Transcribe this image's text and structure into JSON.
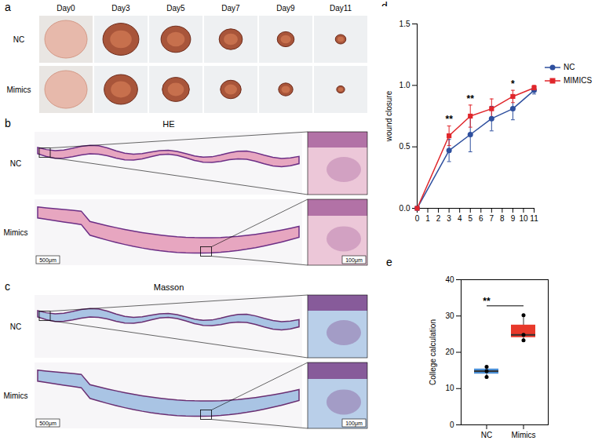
{
  "figure": {
    "a": {
      "letter": "a",
      "columns": [
        "Day0",
        "Day3",
        "Day5",
        "Day7",
        "Day9",
        "Day11"
      ],
      "rows": [
        "NC",
        "Mimics"
      ]
    },
    "b": {
      "letter": "b",
      "title": "HE",
      "rows": [
        "NC",
        "Mimics"
      ],
      "scale_bars": [
        "500μm",
        "100μm"
      ]
    },
    "c": {
      "letter": "c",
      "title": "Masson",
      "rows": [
        "NC",
        "Mimics"
      ],
      "scale_bars": [
        "500μm",
        "100μm"
      ]
    },
    "d": {
      "letter": "d"
    },
    "e": {
      "letter": "e"
    }
  },
  "chart_data": [
    {
      "type": "line",
      "ylabel": "wound closure",
      "x": [
        0,
        3,
        5,
        7,
        9,
        11
      ],
      "xlim": [
        0,
        11
      ],
      "xticks": [
        0,
        1,
        2,
        3,
        4,
        5,
        6,
        7,
        8,
        9,
        10,
        11
      ],
      "ylim": [
        0,
        1.5
      ],
      "yticks": [
        {
          "value": 0,
          "label": "0.0"
        },
        {
          "value": 0.5,
          "label": "0.5"
        },
        {
          "value": 1,
          "label": "1.0"
        },
        {
          "value": 1.5,
          "label": "1.5"
        }
      ],
      "legend": "right",
      "series": [
        {
          "name": "NC",
          "color": "#2e4f9e",
          "marker": "circle",
          "values": [
            0,
            0.47,
            0.6,
            0.73,
            0.81,
            0.96
          ],
          "errors": [
            0,
            0.09,
            0.14,
            0.1,
            0.09,
            0.03
          ]
        },
        {
          "name": "MIMICS",
          "color": "#e0262b",
          "marker": "square",
          "values": [
            0,
            0.59,
            0.75,
            0.81,
            0.91,
            0.98
          ],
          "errors": [
            0,
            0.08,
            0.09,
            0.08,
            0.05,
            0.02
          ]
        }
      ],
      "annotations": [
        {
          "x": 3,
          "text": "**"
        },
        {
          "x": 5,
          "text": "**"
        },
        {
          "x": 9,
          "text": "*"
        }
      ]
    },
    {
      "type": "box",
      "ylabel": "College calculation",
      "categories": [
        "NC",
        "Mimics"
      ],
      "colors": [
        "#4a8fd6",
        "#e8392b"
      ],
      "values": [
        [
          13.2,
          14.8,
          16.0
        ],
        [
          23.3,
          24.8,
          30.2
        ]
      ],
      "ylim": [
        0,
        40
      ],
      "yticks": [
        0,
        10,
        20,
        30,
        40
      ],
      "annotations": [
        {
          "x1": "NC",
          "x2": "Mimics",
          "text": "**"
        }
      ]
    }
  ]
}
